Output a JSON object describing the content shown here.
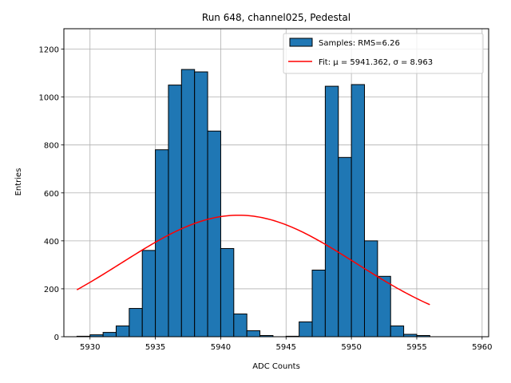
{
  "chart_data": {
    "type": "bar",
    "title": "Run 648, channel025, Pedestal",
    "xlabel": "ADC Counts",
    "ylabel": "Entries",
    "xlim": [
      5928,
      5960.5
    ],
    "ylim": [
      0,
      1285
    ],
    "grid": true,
    "legend_placement": "top-right",
    "x_ticks": [
      5930,
      5935,
      5940,
      5945,
      5950,
      5955,
      5960
    ],
    "y_ticks": [
      0,
      200,
      400,
      600,
      800,
      1000,
      1200
    ],
    "bin_width": 1,
    "series": [
      {
        "name": "Samples: RMS=6.26",
        "kind": "histogram",
        "color": "#1f77b4",
        "bin_edges": [
          5929,
          5930,
          5931,
          5932,
          5933,
          5934,
          5935,
          5936,
          5937,
          5938,
          5939,
          5940,
          5941,
          5942,
          5943,
          5944,
          5945,
          5946,
          5947,
          5948,
          5949,
          5950,
          5951,
          5952,
          5953,
          5954,
          5955,
          5956
        ],
        "values": [
          2,
          8,
          18,
          45,
          118,
          360,
          780,
          1050,
          1115,
          1105,
          858,
          368,
          95,
          25,
          5,
          0,
          2,
          62,
          278,
          1045,
          748,
          1052,
          400,
          252,
          45,
          10,
          5
        ]
      },
      {
        "name": "Fit: μ = 5941.362, σ = 8.963",
        "kind": "gaussian",
        "color": "#ff0000",
        "mu": 5941.362,
        "sigma": 8.963,
        "peak": 507,
        "x_range": [
          5929,
          5956
        ]
      }
    ]
  }
}
